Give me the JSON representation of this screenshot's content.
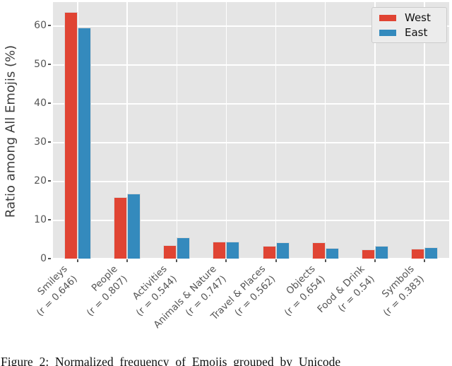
{
  "figure": {
    "caption": "Figure 2: Normalized frequency of Emojis grouped by Unicode"
  },
  "chart_data": {
    "type": "bar",
    "title": "",
    "xlabel": "",
    "ylabel": "Ratio among All Emojis (%)",
    "ylim": [
      0,
      66
    ],
    "yticks": [
      0,
      10,
      20,
      30,
      40,
      50,
      60
    ],
    "grid": true,
    "legend_position": "upper right",
    "categories": [
      "Smileys",
      "People",
      "Activities",
      "Animals & Nature",
      "Travel & Places",
      "Objects",
      "Food & Drink",
      "Symbols"
    ],
    "category_sublabels": [
      "(r = 0.646)",
      "(r = 0.807)",
      "(r = 0.544)",
      "(r = 0.747)",
      "(r = 0.562)",
      "(r = 0.654)",
      "(r = 0.54)",
      "(r = 0.383)"
    ],
    "series": [
      {
        "name": "West",
        "color": "#E04433",
        "values": [
          63.5,
          15.9,
          3.4,
          4.3,
          3.3,
          4.1,
          2.4,
          2.6
        ]
      },
      {
        "name": "East",
        "color": "#348ABD",
        "values": [
          59.5,
          16.8,
          5.4,
          4.4,
          4.1,
          2.8,
          3.2,
          2.9
        ]
      }
    ],
    "colors": {
      "plot_bg": "#E5E5E5",
      "grid": "#FFFFFF",
      "tick": "#555555",
      "axis_label": "#3C3C3C",
      "legend_bg": "#ECECEC",
      "legend_border": "#CCCCCC"
    }
  }
}
